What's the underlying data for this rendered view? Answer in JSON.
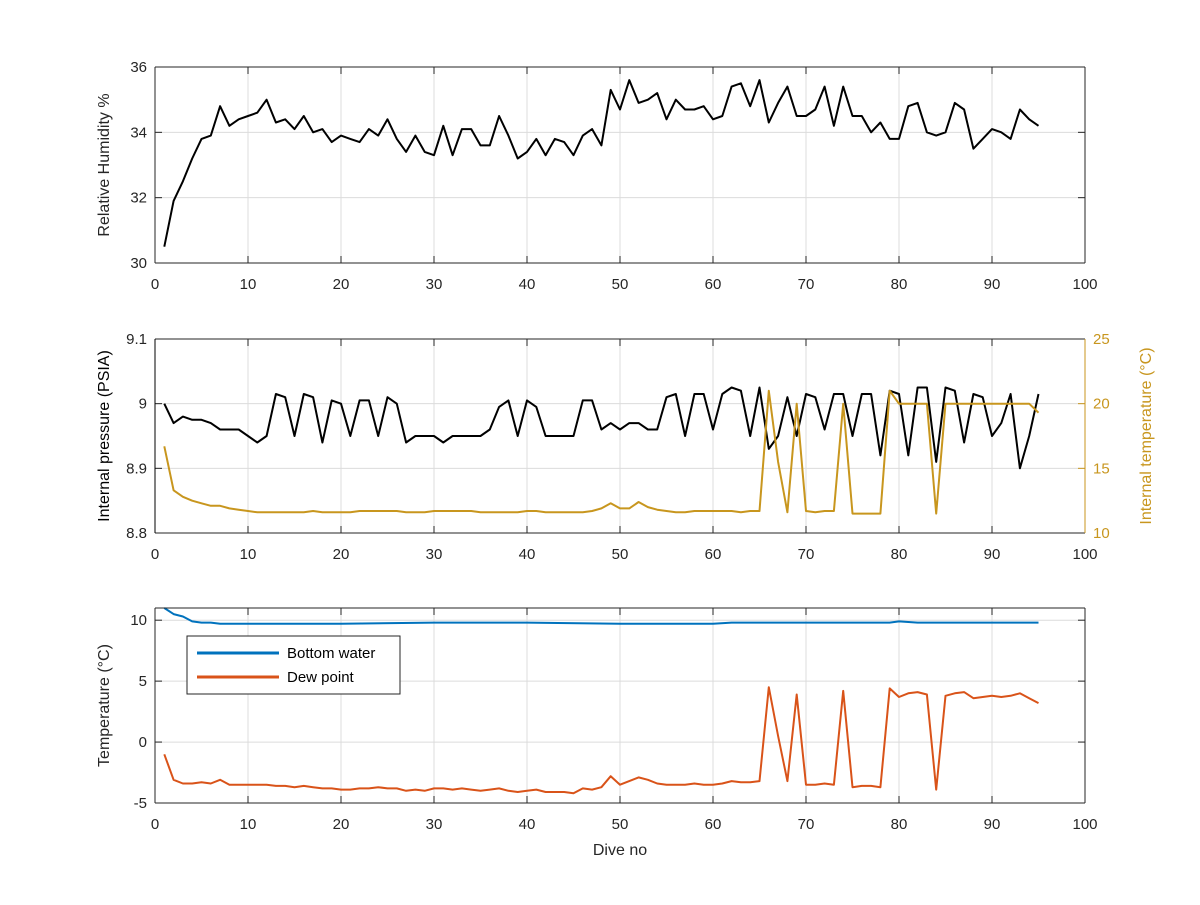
{
  "figure": {
    "background": "#ffffff",
    "axis_color": "#262626",
    "grid_color": "#dcdcdc"
  },
  "chart_data": [
    {
      "type": "line",
      "xlabel": "",
      "ylabel": "Relative Humidity %",
      "xlim": [
        0,
        100
      ],
      "ylim": [
        30,
        36
      ],
      "xticks": [
        "0",
        "10",
        "20",
        "30",
        "40",
        "50",
        "60",
        "70",
        "80",
        "90",
        "100"
      ],
      "yticks": [
        "30",
        "32",
        "34",
        "36"
      ],
      "grid": true,
      "series": [
        {
          "color": "#000000",
          "x": [
            1,
            2,
            3,
            4,
            5,
            6,
            7,
            8,
            9,
            10,
            11,
            12,
            13,
            14,
            15,
            16,
            17,
            18,
            19,
            20,
            21,
            22,
            23,
            24,
            25,
            26,
            27,
            28,
            29,
            30,
            31,
            32,
            33,
            34,
            35,
            36,
            37,
            38,
            39,
            40,
            41,
            42,
            43,
            44,
            45,
            46,
            47,
            48,
            49,
            50,
            51,
            52,
            53,
            54,
            55,
            56,
            57,
            58,
            59,
            60,
            61,
            62,
            63,
            64,
            65,
            66,
            67,
            68,
            69,
            70,
            71,
            72,
            73,
            74,
            75,
            76,
            77,
            78,
            79,
            80,
            81,
            82,
            83,
            84,
            85,
            86,
            87,
            88,
            89,
            90,
            91,
            92,
            93,
            94,
            95
          ],
          "y": [
            30.5,
            31.9,
            32.5,
            33.2,
            33.8,
            33.9,
            34.8,
            34.2,
            34.4,
            34.5,
            34.6,
            35.0,
            34.3,
            34.4,
            34.1,
            34.5,
            34.0,
            34.1,
            33.7,
            33.9,
            33.8,
            33.7,
            34.1,
            33.9,
            34.4,
            33.8,
            33.4,
            33.9,
            33.4,
            33.3,
            34.2,
            33.3,
            34.1,
            34.1,
            33.6,
            33.6,
            34.5,
            33.9,
            33.2,
            33.4,
            33.8,
            33.3,
            33.8,
            33.7,
            33.3,
            33.9,
            34.1,
            33.6,
            35.3,
            34.7,
            35.6,
            34.9,
            35.0,
            35.2,
            34.4,
            35.0,
            34.7,
            34.7,
            34.8,
            34.4,
            34.5,
            35.4,
            35.5,
            34.8,
            35.6,
            34.3,
            34.9,
            35.4,
            34.5,
            34.5,
            34.7,
            35.4,
            34.2,
            35.4,
            34.5,
            34.5,
            34.0,
            34.3,
            33.8,
            33.8,
            34.8,
            34.9,
            34.0,
            33.9,
            34.0,
            34.9,
            34.7,
            33.5,
            33.8,
            34.1,
            34.0,
            33.8,
            34.7,
            34.4,
            34.2
          ]
        }
      ]
    },
    {
      "type": "line",
      "xlabel": "",
      "ylabel": "Internal pressure (PSIA)",
      "ylabel_right": "Internal temperature (°C)",
      "xlim": [
        0,
        100
      ],
      "ylim": [
        8.8,
        9.1
      ],
      "ylim_right": [
        10,
        25
      ],
      "xticks": [
        "0",
        "10",
        "20",
        "30",
        "40",
        "50",
        "60",
        "70",
        "80",
        "90",
        "100"
      ],
      "yticks": [
        "8.8",
        "8.9",
        "9",
        "9.1"
      ],
      "yticks_right": [
        "10",
        "15",
        "20",
        "25"
      ],
      "grid": true,
      "series": [
        {
          "color": "#000000",
          "axis": "left",
          "x": [
            1,
            2,
            3,
            4,
            5,
            6,
            7,
            8,
            9,
            10,
            11,
            12,
            13,
            14,
            15,
            16,
            17,
            18,
            19,
            20,
            21,
            22,
            23,
            24,
            25,
            26,
            27,
            28,
            29,
            30,
            31,
            32,
            33,
            34,
            35,
            36,
            37,
            38,
            39,
            40,
            41,
            42,
            43,
            44,
            45,
            46,
            47,
            48,
            49,
            50,
            51,
            52,
            53,
            54,
            55,
            56,
            57,
            58,
            59,
            60,
            61,
            62,
            63,
            64,
            65,
            66,
            67,
            68,
            69,
            70,
            71,
            72,
            73,
            74,
            75,
            76,
            77,
            78,
            79,
            80,
            81,
            82,
            83,
            84,
            85,
            86,
            87,
            88,
            89,
            90,
            91,
            92,
            93,
            94,
            95
          ],
          "y": [
            9.0,
            8.97,
            8.98,
            8.975,
            8.975,
            8.97,
            8.96,
            8.96,
            8.96,
            8.95,
            8.94,
            8.95,
            9.015,
            9.01,
            8.95,
            9.015,
            9.01,
            8.94,
            9.005,
            9.0,
            8.95,
            9.005,
            9.005,
            8.95,
            9.01,
            9.0,
            8.94,
            8.95,
            8.95,
            8.95,
            8.94,
            8.95,
            8.95,
            8.95,
            8.95,
            8.96,
            8.995,
            9.005,
            8.95,
            9.005,
            8.995,
            8.95,
            8.95,
            8.95,
            8.95,
            9.005,
            9.005,
            8.96,
            8.97,
            8.96,
            8.97,
            8.97,
            8.96,
            8.96,
            9.01,
            9.015,
            8.95,
            9.015,
            9.015,
            8.96,
            9.015,
            9.025,
            9.02,
            8.95,
            9.025,
            8.93,
            8.95,
            9.01,
            8.95,
            9.015,
            9.01,
            8.96,
            9.015,
            9.015,
            8.95,
            9.015,
            9.015,
            8.92,
            9.02,
            9.015,
            8.92,
            9.025,
            9.025,
            8.91,
            9.025,
            9.02,
            8.94,
            9.015,
            9.01,
            8.95,
            8.97,
            9.015,
            8.9,
            8.95,
            9.015
          ]
        },
        {
          "color": "#c8961e",
          "axis": "right",
          "x": [
            1,
            2,
            3,
            4,
            5,
            6,
            7,
            8,
            9,
            10,
            11,
            12,
            13,
            14,
            15,
            16,
            17,
            18,
            19,
            20,
            21,
            22,
            23,
            24,
            25,
            26,
            27,
            28,
            29,
            30,
            31,
            32,
            33,
            34,
            35,
            36,
            37,
            38,
            39,
            40,
            41,
            42,
            43,
            44,
            45,
            46,
            47,
            48,
            49,
            50,
            51,
            52,
            53,
            54,
            55,
            56,
            57,
            58,
            59,
            60,
            61,
            62,
            63,
            64,
            65,
            66,
            67,
            68,
            69,
            70,
            71,
            72,
            73,
            74,
            75,
            76,
            77,
            78,
            79,
            80,
            81,
            82,
            83,
            84,
            85,
            86,
            87,
            88,
            89,
            90,
            91,
            92,
            93,
            94,
            95
          ],
          "y": [
            16.7,
            13.3,
            12.8,
            12.5,
            12.3,
            12.1,
            12.1,
            11.9,
            11.8,
            11.7,
            11.6,
            11.6,
            11.6,
            11.6,
            11.6,
            11.6,
            11.7,
            11.6,
            11.6,
            11.6,
            11.6,
            11.7,
            11.7,
            11.7,
            11.7,
            11.7,
            11.6,
            11.6,
            11.6,
            11.7,
            11.7,
            11.7,
            11.7,
            11.7,
            11.6,
            11.6,
            11.6,
            11.6,
            11.6,
            11.7,
            11.7,
            11.6,
            11.6,
            11.6,
            11.6,
            11.6,
            11.7,
            11.9,
            12.3,
            11.9,
            11.9,
            12.4,
            12.0,
            11.8,
            11.7,
            11.6,
            11.6,
            11.7,
            11.7,
            11.7,
            11.7,
            11.7,
            11.6,
            11.7,
            11.7,
            21.0,
            15.5,
            11.6,
            20.0,
            11.7,
            11.6,
            11.7,
            11.7,
            20.0,
            11.5,
            11.5,
            11.5,
            11.5,
            21.0,
            20.0,
            20.0,
            20.0,
            20.0,
            11.5,
            20.0,
            20.0,
            20.0,
            20.0,
            20.0,
            20.0,
            20.0,
            20.0,
            20.0,
            20.0,
            19.3
          ]
        }
      ]
    },
    {
      "type": "line",
      "xlabel": "Dive no",
      "ylabel": "Temperature (°C)",
      "xlim": [
        0,
        100
      ],
      "ylim": [
        -5,
        11
      ],
      "xticks": [
        "0",
        "10",
        "20",
        "30",
        "40",
        "50",
        "60",
        "70",
        "80",
        "90",
        "100"
      ],
      "yticks": [
        "-5",
        "0",
        "5",
        "10"
      ],
      "grid": true,
      "legend": "top-left",
      "series": [
        {
          "name": "Bottom water",
          "color": "#0072bd",
          "x": [
            1,
            2,
            3,
            4,
            5,
            6,
            7,
            10,
            20,
            30,
            40,
            50,
            60,
            62,
            65,
            70,
            75,
            79,
            80,
            82,
            85,
            90,
            95
          ],
          "y": [
            11.0,
            10.5,
            10.3,
            9.9,
            9.8,
            9.8,
            9.7,
            9.7,
            9.7,
            9.8,
            9.8,
            9.7,
            9.7,
            9.8,
            9.8,
            9.8,
            9.8,
            9.8,
            9.9,
            9.8,
            9.8,
            9.8,
            9.8
          ]
        },
        {
          "name": "Dew point",
          "color": "#d95319",
          "x": [
            1,
            2,
            3,
            4,
            5,
            6,
            7,
            8,
            9,
            10,
            11,
            12,
            13,
            14,
            15,
            16,
            17,
            18,
            19,
            20,
            21,
            22,
            23,
            24,
            25,
            26,
            27,
            28,
            29,
            30,
            31,
            32,
            33,
            34,
            35,
            36,
            37,
            38,
            39,
            40,
            41,
            42,
            43,
            44,
            45,
            46,
            47,
            48,
            49,
            50,
            51,
            52,
            53,
            54,
            55,
            56,
            57,
            58,
            59,
            60,
            61,
            62,
            63,
            64,
            65,
            66,
            67,
            68,
            69,
            70,
            71,
            72,
            73,
            74,
            75,
            76,
            77,
            78,
            79,
            80,
            81,
            82,
            83,
            84,
            85,
            86,
            87,
            88,
            89,
            90,
            91,
            92,
            93,
            94,
            95
          ],
          "y": [
            -1.0,
            -3.1,
            -3.4,
            -3.4,
            -3.3,
            -3.4,
            -3.1,
            -3.5,
            -3.5,
            -3.5,
            -3.5,
            -3.5,
            -3.6,
            -3.6,
            -3.7,
            -3.6,
            -3.7,
            -3.8,
            -3.8,
            -3.9,
            -3.9,
            -3.8,
            -3.8,
            -3.7,
            -3.8,
            -3.8,
            -4.0,
            -3.9,
            -4.0,
            -3.8,
            -3.8,
            -3.9,
            -3.8,
            -3.9,
            -4.0,
            -3.9,
            -3.8,
            -4.0,
            -4.1,
            -4.0,
            -3.9,
            -4.1,
            -4.1,
            -4.1,
            -4.2,
            -3.8,
            -3.9,
            -3.7,
            -2.8,
            -3.5,
            -3.2,
            -2.9,
            -3.1,
            -3.4,
            -3.5,
            -3.5,
            -3.5,
            -3.4,
            -3.5,
            -3.5,
            -3.4,
            -3.2,
            -3.3,
            -3.3,
            -3.2,
            4.5,
            0.5,
            -3.2,
            3.9,
            -3.5,
            -3.5,
            -3.4,
            -3.5,
            4.2,
            -3.7,
            -3.6,
            -3.6,
            -3.7,
            4.4,
            3.7,
            4.0,
            4.1,
            3.9,
            -3.9,
            3.8,
            4.0,
            4.1,
            3.6,
            3.7,
            3.8,
            3.7,
            3.8,
            4.0,
            3.6,
            3.2
          ]
        }
      ]
    }
  ]
}
